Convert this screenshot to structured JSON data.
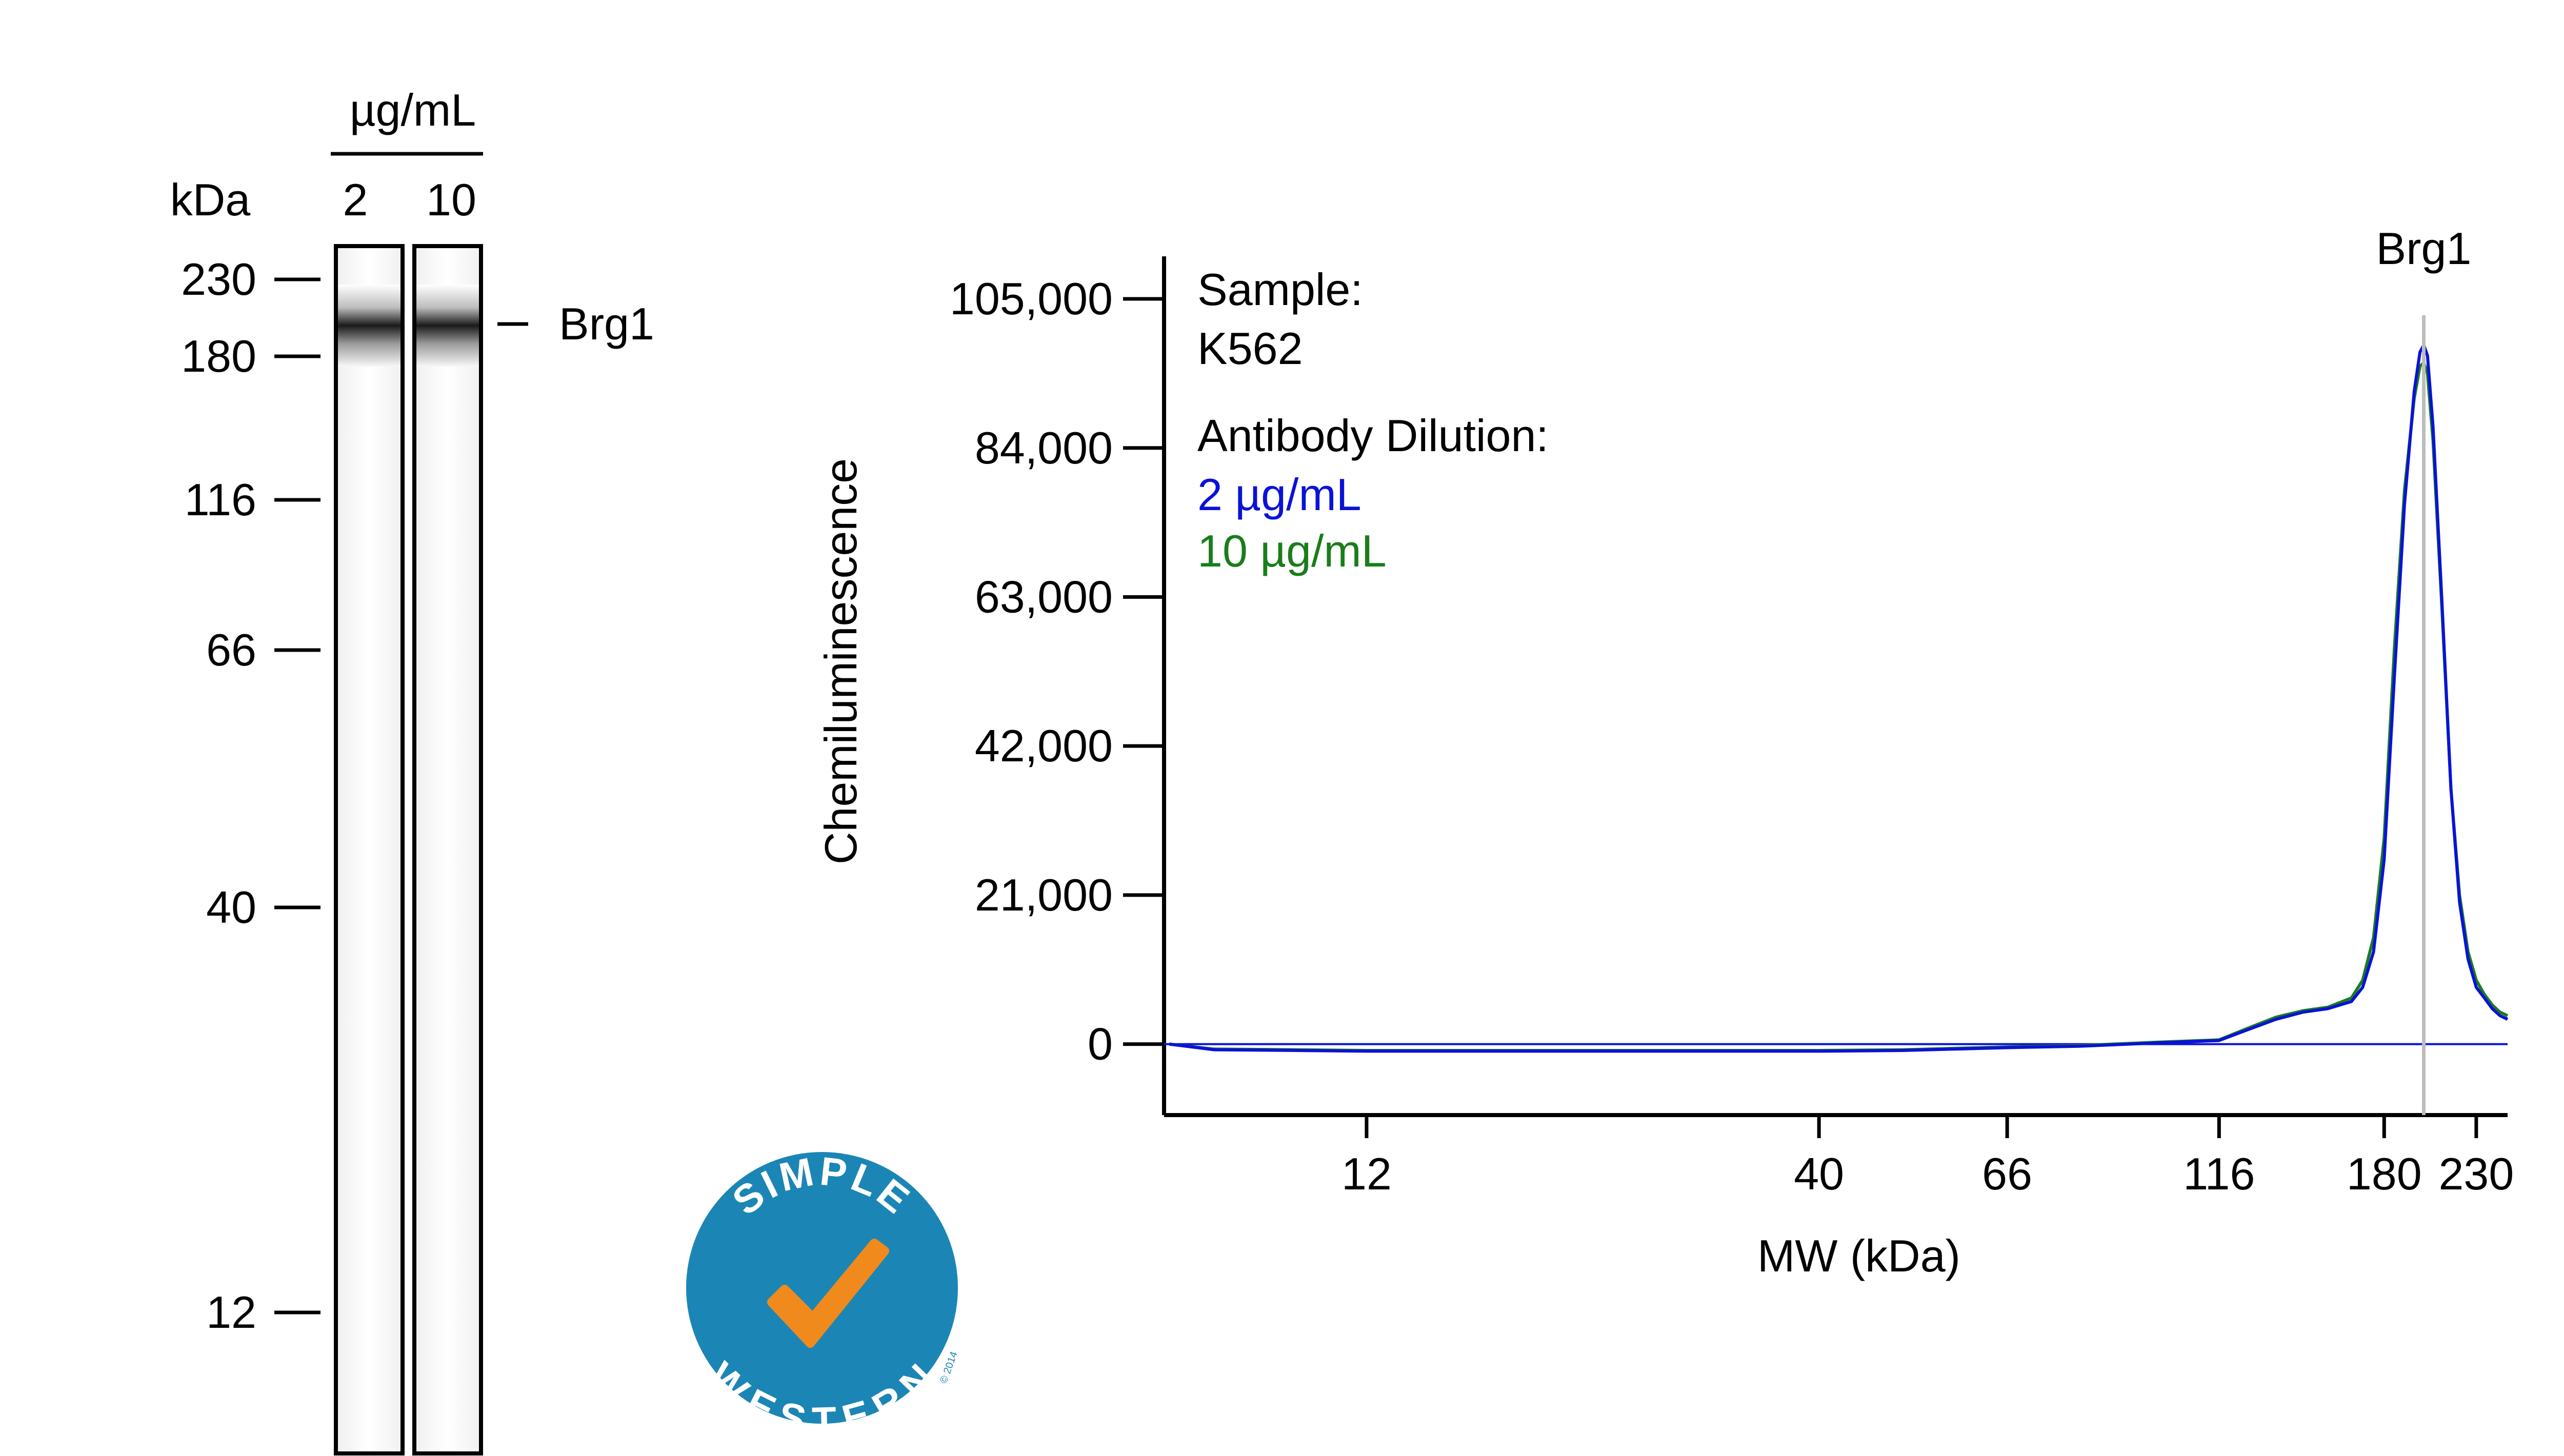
{
  "gel": {
    "kda_label": "kDa",
    "conc_unit": "µg/mL",
    "lanes": [
      "2",
      "10"
    ],
    "ladder": [
      "230",
      "180",
      "116",
      "66",
      "40",
      "12"
    ],
    "band_label": "Brg1"
  },
  "logo": {
    "top_text": "SIMPLE",
    "bottom_text": "WESTERN",
    "copyright": "© 2014",
    "colors": {
      "circle": "#1b86b5",
      "check": "#f08a1c",
      "text": "#ffffff"
    }
  },
  "chart_data": {
    "type": "line",
    "title": "",
    "xlabel": "MW (kDa)",
    "ylabel": "Chemiluminescence",
    "x_scale": "log",
    "xlim": [
      7,
      250
    ],
    "ylim": [
      -10000,
      111000
    ],
    "x_ticks": [
      12,
      40,
      66,
      116,
      180,
      230
    ],
    "x_tick_labels": [
      "12",
      "40",
      "66",
      "116",
      "180",
      "230"
    ],
    "y_ticks": [
      0,
      21000,
      42000,
      63000,
      84000,
      105000
    ],
    "y_tick_labels": [
      "0",
      "21,000",
      "42,000",
      "63,000",
      "84,000",
      "105,000"
    ],
    "peak_marker": {
      "x": 200,
      "label": "Brg1"
    },
    "annotation": {
      "sample_label": "Sample:",
      "sample_value": "K562",
      "dilution_label": "Antibody Dilution:"
    },
    "series": [
      {
        "name": "2 µg/mL",
        "color": "#0a12d8",
        "x": [
          7.1,
          8,
          10,
          12,
          20,
          30,
          40,
          50,
          66,
          80,
          100,
          116,
          125,
          135,
          145,
          155,
          165,
          170,
          175,
          180,
          185,
          190,
          195,
          198,
          200,
          202,
          205,
          210,
          215,
          220,
          225,
          230,
          235,
          240,
          245,
          250
        ],
        "y": [
          0,
          -800,
          -900,
          -1000,
          -1000,
          -1000,
          -1000,
          -900,
          -500,
          -300,
          200,
          500,
          2000,
          3500,
          4500,
          5000,
          6000,
          8000,
          13000,
          26000,
          52000,
          76000,
          92000,
          97500,
          98500,
          97000,
          87000,
          62000,
          36000,
          20000,
          12000,
          8000,
          6500,
          5000,
          4000,
          3500
        ]
      },
      {
        "name": "10 µg/mL",
        "color": "#1a7d1a",
        "x": [
          7.1,
          8,
          10,
          12,
          20,
          30,
          40,
          50,
          66,
          80,
          100,
          116,
          125,
          135,
          145,
          155,
          165,
          170,
          175,
          180,
          185,
          190,
          195,
          198,
          200,
          202,
          205,
          210,
          215,
          220,
          225,
          230,
          235,
          240,
          245,
          250
        ],
        "y": [
          0,
          -700,
          -800,
          -900,
          -900,
          -900,
          -900,
          -800,
          -400,
          -200,
          300,
          600,
          2200,
          3800,
          4700,
          5200,
          6500,
          9000,
          15000,
          29000,
          56000,
          78000,
          91000,
          95500,
          96000,
          94500,
          85000,
          61000,
          36000,
          21000,
          13000,
          9000,
          7000,
          5500,
          4500,
          4000
        ]
      }
    ]
  }
}
